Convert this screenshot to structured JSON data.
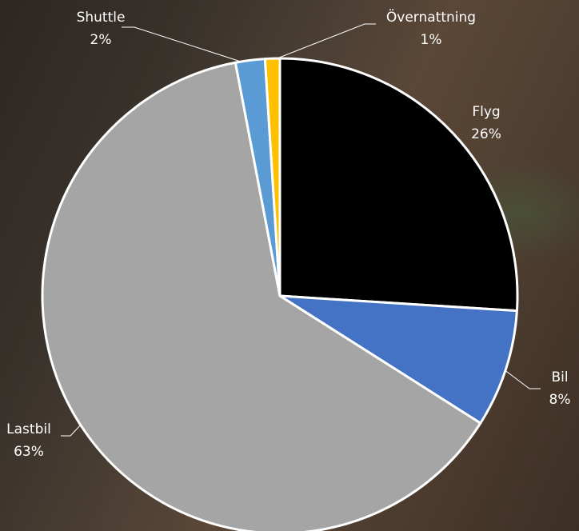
{
  "chart_data": {
    "type": "pie",
    "categories": [
      "Flyg",
      "Bil",
      "Lastbil",
      "Shuttle",
      "Övernattning"
    ],
    "values": [
      26,
      8,
      63,
      2,
      1
    ],
    "value_labels": [
      "26%",
      "8%",
      "63%",
      "2%",
      "1%"
    ],
    "colors": [
      "#000000",
      "#4472c4",
      "#a5a5a5",
      "#5b9bd5",
      "#ffc000"
    ]
  }
}
